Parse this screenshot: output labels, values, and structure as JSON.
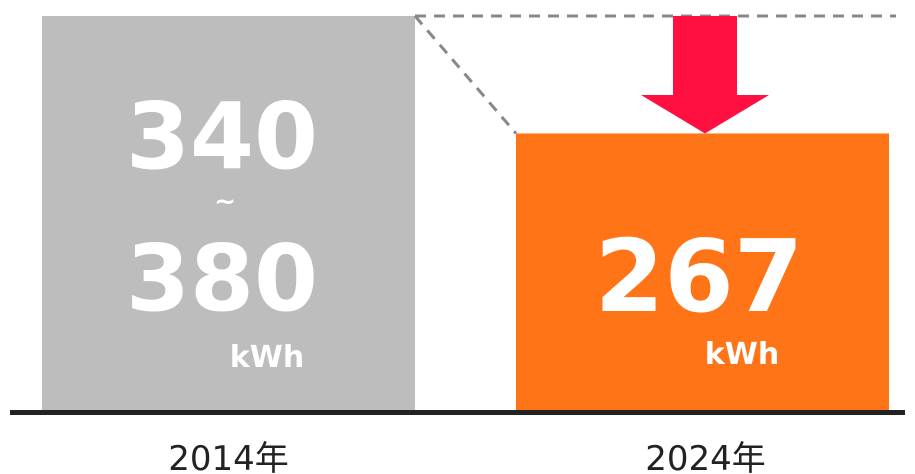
{
  "chart_data": {
    "type": "bar",
    "categories": [
      "2014年",
      "2024年"
    ],
    "series": [
      {
        "values": [
          [
            340,
            380
          ],
          267
        ]
      }
    ],
    "ylim": [
      0,
      380
    ],
    "grid": false,
    "legend": "none",
    "labels": {
      "bar1_top": "340",
      "bar1_sep": "~",
      "bar1_bottom": "380",
      "bar2_value": "267",
      "unit": "kWh"
    },
    "annotations": [
      "decrease-arrow",
      "dashed-reference-line"
    ],
    "colors": {
      "bar_2014": "#bdbdbd",
      "bar_2024": "#ff7417",
      "arrow": "#ff1040",
      "baseline": "#222222",
      "dashed": "#888888"
    }
  }
}
